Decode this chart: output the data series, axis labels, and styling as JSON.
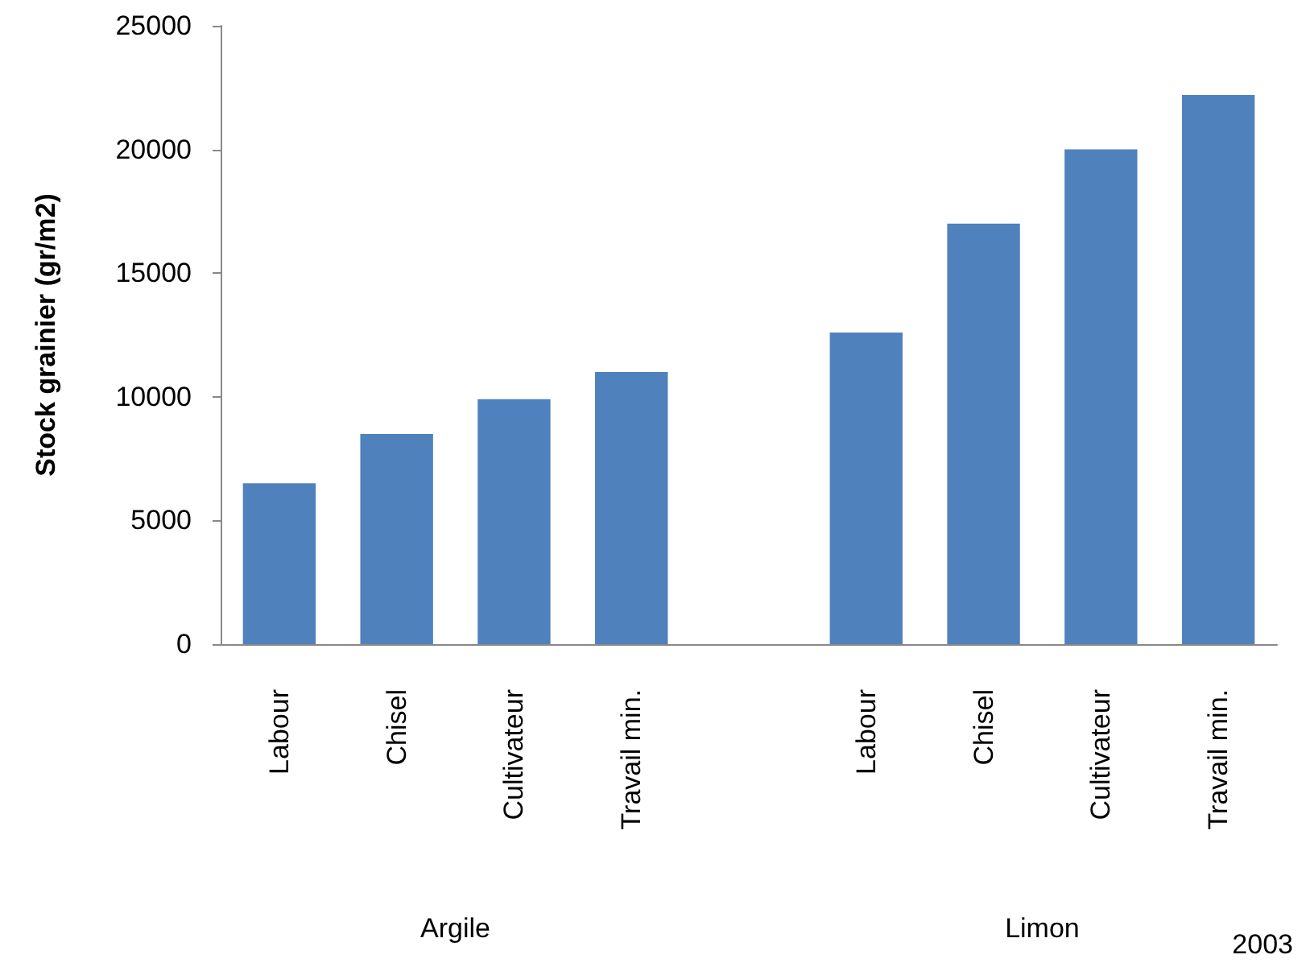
{
  "chart_data": {
    "type": "bar",
    "ylabel": "Stock grainier (gr/m2)",
    "categories": [
      "Labour",
      "Chisel",
      "Cultivateur",
      "Travail min.",
      null,
      "Labour",
      "Chisel",
      "Cultivateur",
      "Travail min."
    ],
    "values": [
      6500,
      8500,
      9900,
      11000,
      null,
      12600,
      17000,
      20000,
      22200
    ],
    "color": "#4f81bd",
    "ylim": [
      0,
      25000
    ],
    "yticks": [
      0,
      5000,
      10000,
      15000,
      20000,
      25000
    ],
    "grid": false,
    "annotations": [
      "Argile",
      "Limon",
      "2003"
    ]
  }
}
